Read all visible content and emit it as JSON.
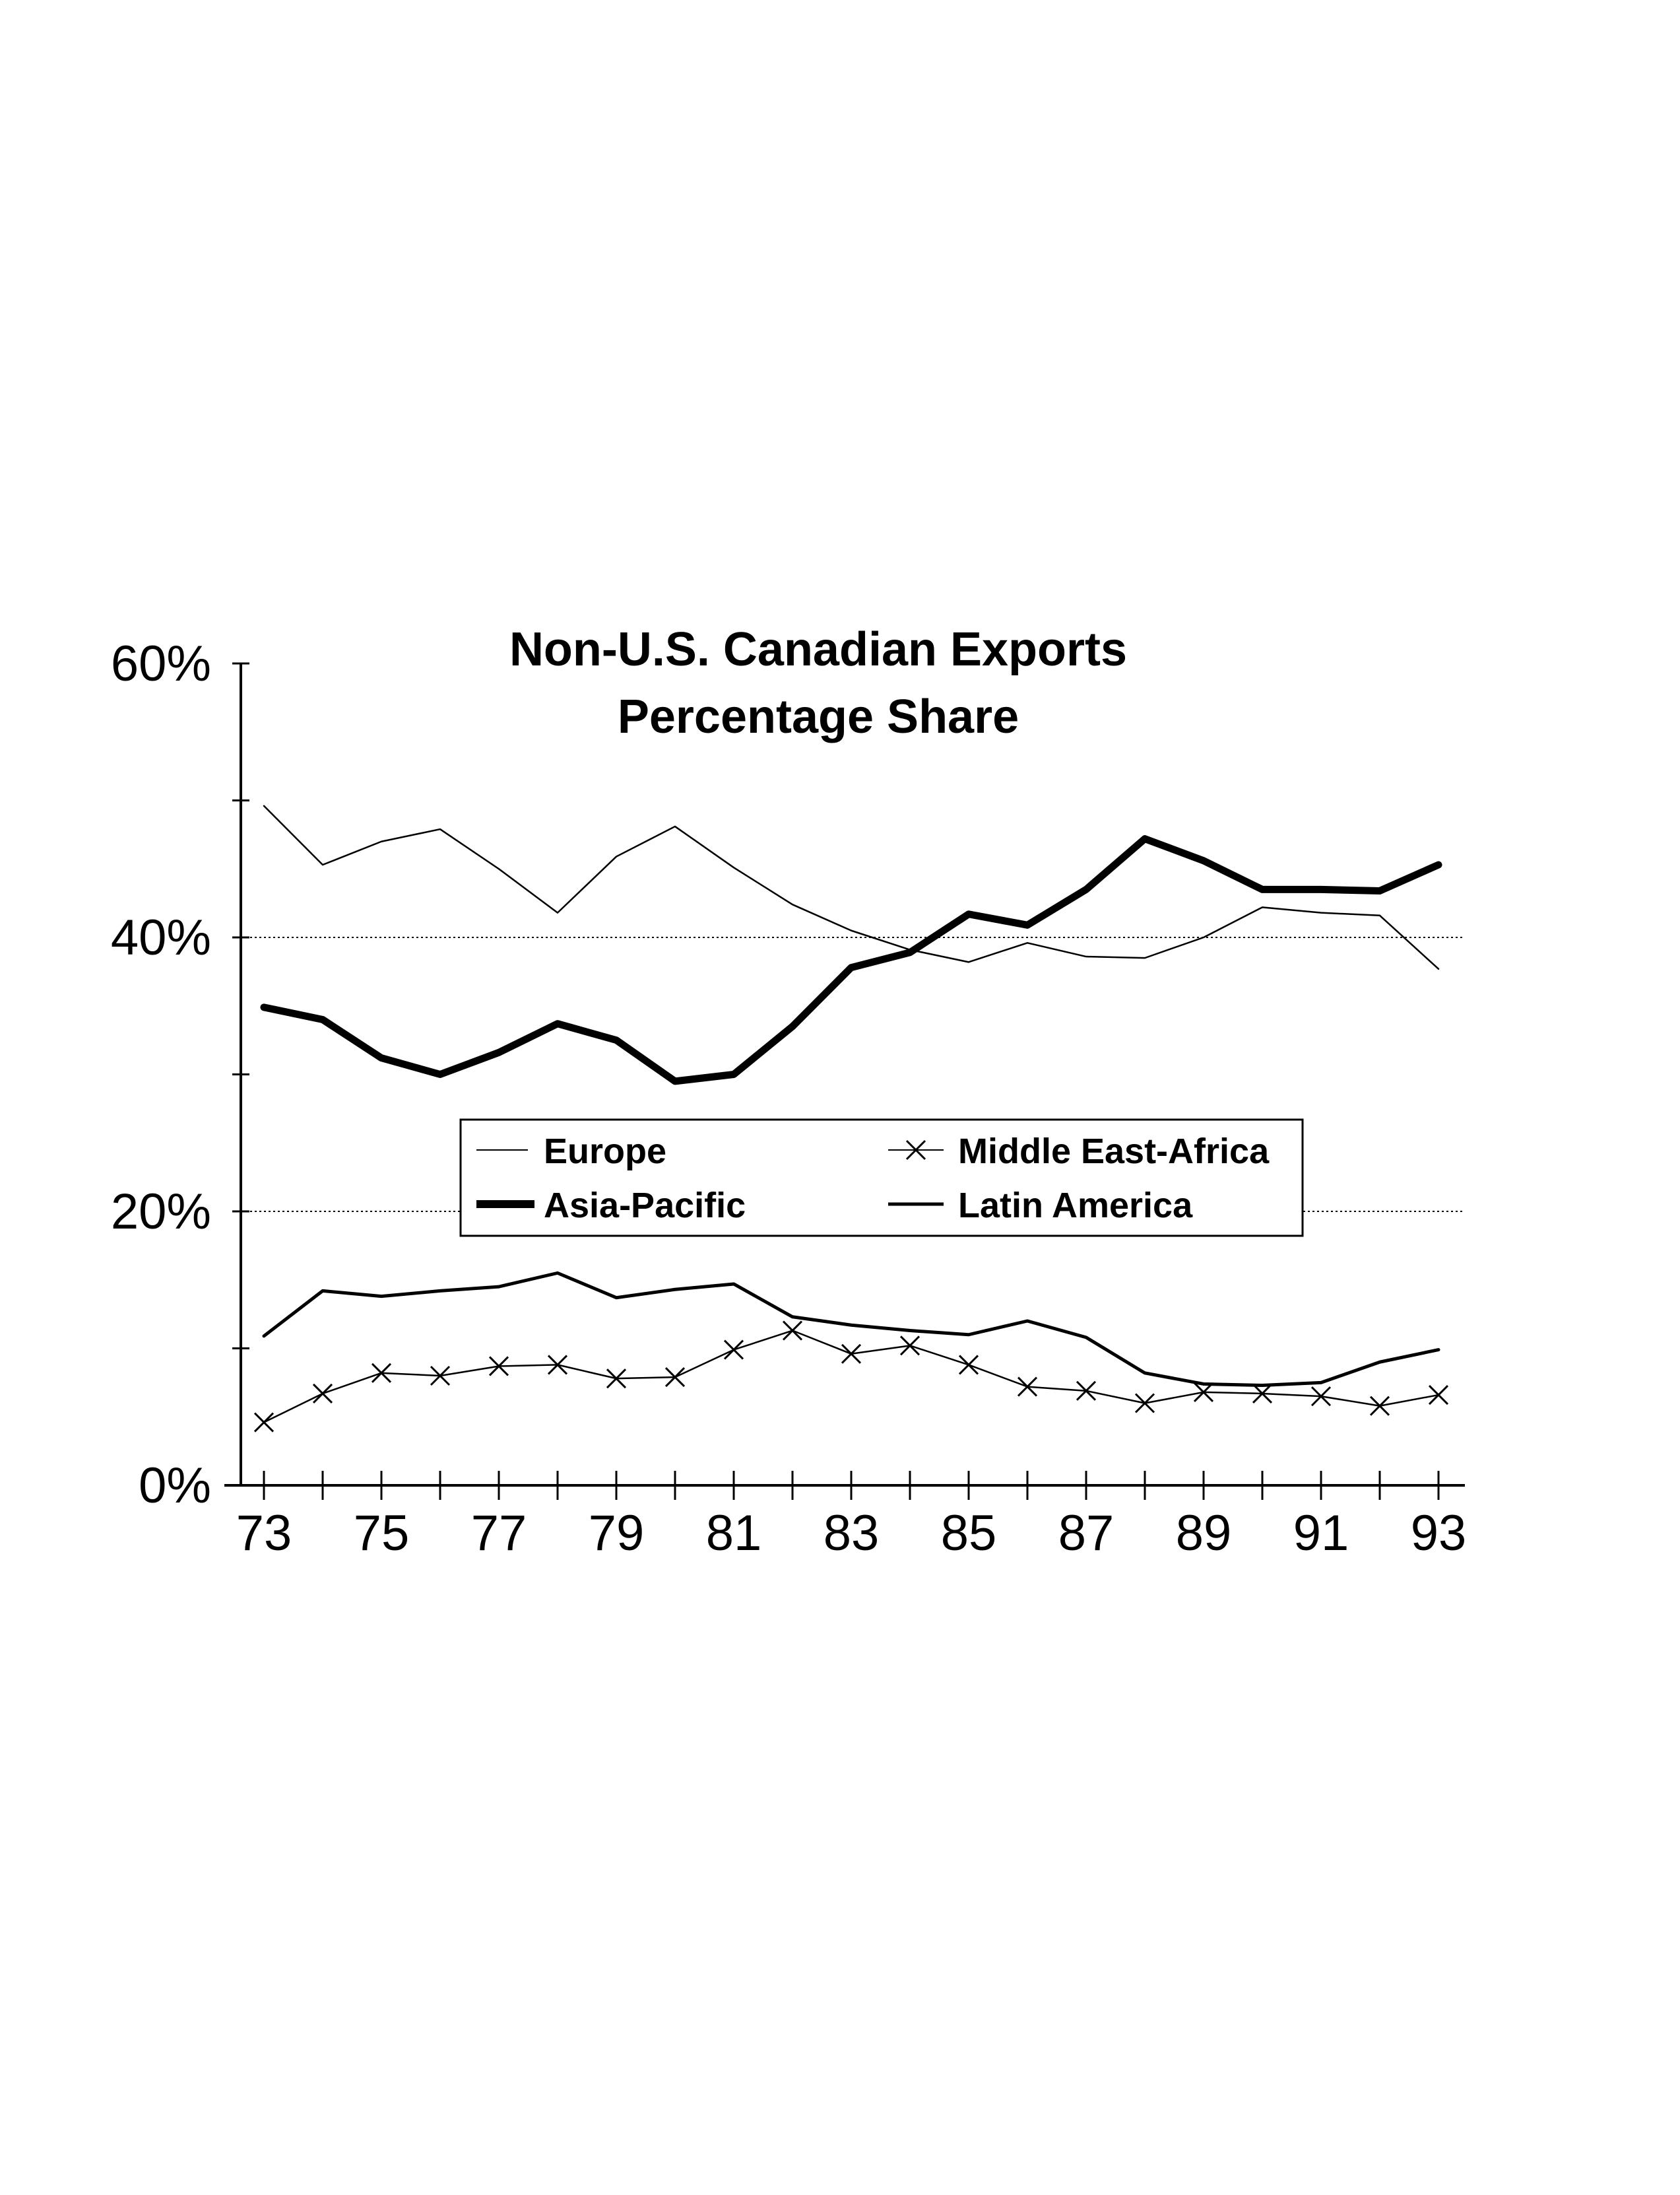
{
  "chart_data": {
    "type": "line",
    "title": "Non-U.S. Canadian Exports",
    "subtitle": "Percentage Share",
    "xlabel": "",
    "ylabel": "",
    "x": [
      73,
      74,
      75,
      76,
      77,
      78,
      79,
      80,
      81,
      82,
      83,
      84,
      85,
      86,
      87,
      88,
      89,
      90,
      91,
      92,
      93
    ],
    "x_tick_labels": [
      "73",
      "75",
      "77",
      "79",
      "81",
      "83",
      "85",
      "87",
      "89",
      "91",
      "93"
    ],
    "y_tick_labels": [
      "0%",
      "20%",
      "40%",
      "60%"
    ],
    "ylim": [
      0,
      60
    ],
    "xlim": [
      73,
      93
    ],
    "grid": "horizontal dotted at 20% and 40%",
    "legend_placement": "center",
    "series": [
      {
        "name": "Europe",
        "style": "thin",
        "values": [
          49.6,
          45.3,
          47.0,
          47.9,
          45.0,
          41.8,
          45.9,
          48.1,
          45.1,
          42.4,
          40.5,
          39.1,
          38.2,
          39.6,
          38.6,
          38.5,
          40.0,
          42.2,
          41.8,
          41.6,
          37.7
        ]
      },
      {
        "name": "Asia-Pacific",
        "style": "thick",
        "values": [
          34.9,
          34.0,
          31.2,
          30.0,
          31.6,
          33.7,
          32.5,
          29.5,
          30.0,
          33.5,
          37.8,
          38.9,
          41.7,
          40.9,
          43.5,
          47.2,
          45.6,
          43.5,
          43.5,
          43.4,
          45.3
        ]
      },
      {
        "name": "Middle East-Africa",
        "style": "thin with x markers",
        "values": [
          4.6,
          6.7,
          8.2,
          8.0,
          8.7,
          8.8,
          7.8,
          7.9,
          9.9,
          11.3,
          9.6,
          10.2,
          8.8,
          7.2,
          6.9,
          6.0,
          6.8,
          6.7,
          6.5,
          5.8,
          6.6
        ]
      },
      {
        "name": "Latin America",
        "style": "medium",
        "values": [
          10.9,
          14.2,
          13.8,
          14.2,
          14.5,
          15.5,
          13.7,
          14.3,
          14.7,
          12.3,
          11.7,
          11.3,
          11.0,
          12.0,
          10.8,
          8.2,
          7.4,
          7.3,
          7.5,
          9.0,
          9.9
        ]
      }
    ]
  }
}
